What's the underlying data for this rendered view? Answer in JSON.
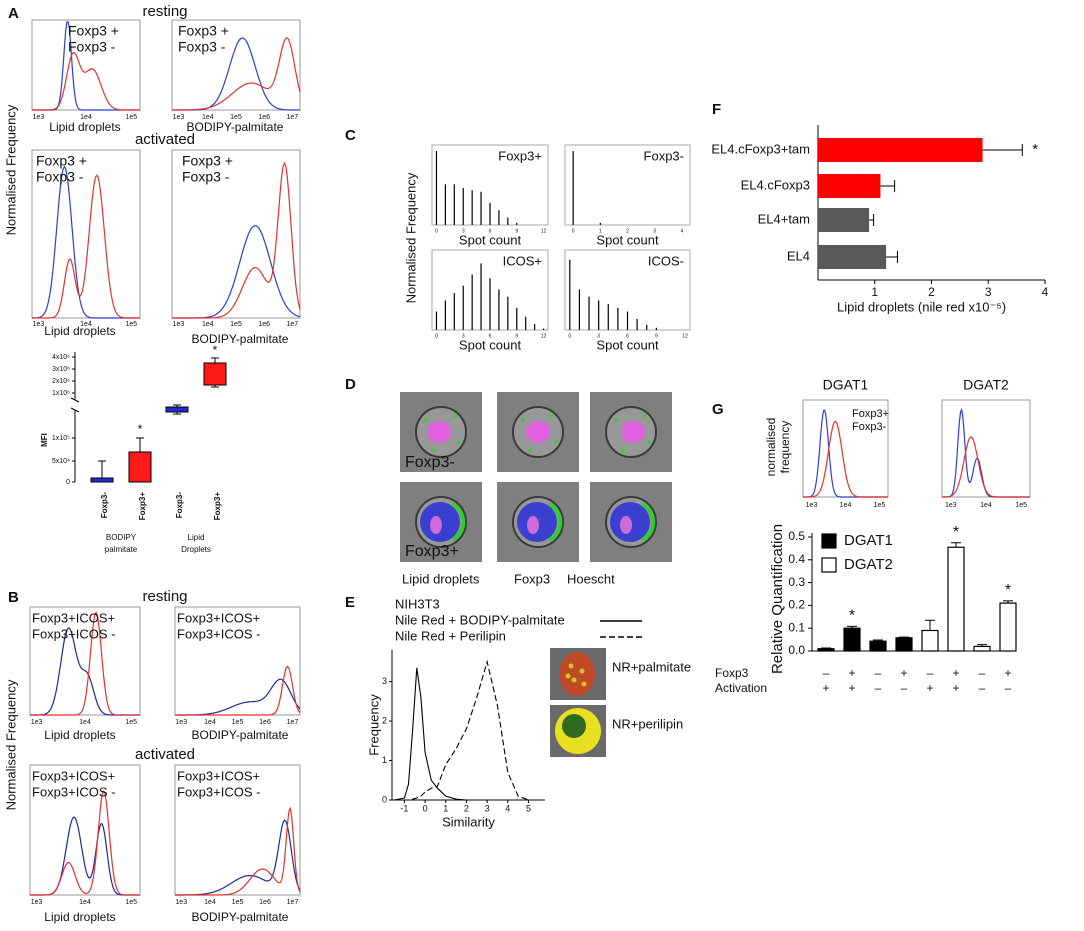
{
  "panel_labels": [
    "A",
    "B",
    "C",
    "D",
    "E",
    "F",
    "G"
  ],
  "a": {
    "resting": "resting",
    "activated": "activated",
    "y_label": "Normalised Frequency",
    "legend": [
      "Foxp3 +",
      "Foxp3 -"
    ],
    "x_labels": [
      "Lipid droplets",
      "BODIPY-palmitate"
    ],
    "ticks_narrow": [
      "1e3",
      "1e4",
      "1e5"
    ],
    "ticks_wide": [
      "1e3",
      "1e4",
      "1e5",
      "1e6",
      "1e7"
    ],
    "mfi": {
      "y_label": "MFI",
      "ticks": [
        "4x10⁶",
        "3x10⁶",
        "2x10⁶",
        "1x10⁶",
        "1x10⁵",
        "5x10⁴",
        "0"
      ],
      "categories": [
        "Foxp3-",
        "Foxp3+",
        "Foxp3-",
        "Foxp3+"
      ],
      "groups": [
        [
          "BODIPY",
          "palmitate"
        ],
        [
          "Lipid",
          "Droplets"
        ]
      ],
      "stars": [
        "*",
        "*"
      ]
    }
  },
  "b": {
    "resting": "resting",
    "activated": "activated",
    "y_label": "Normalised Frequency",
    "legend": [
      "Foxp3+ICOS+",
      "Foxp3+ICOS -"
    ],
    "x_labels": [
      "Lipid droplets",
      "BODIPY-palmitate"
    ]
  },
  "c": {
    "y_label": "Normalised Frequency"
  },
  "d": {
    "labels": [
      "Foxp3-",
      "Foxp3+"
    ],
    "legend": [
      "Lipid droplets",
      "Foxp3",
      "Hoescht"
    ]
  },
  "e": {
    "thumb_labels": [
      "NR+palmitate",
      "NR+perilipin"
    ]
  },
  "g": {
    "titles": [
      "DGAT1",
      "DGAT2"
    ],
    "y_label": [
      "normalised",
      "frequency"
    ],
    "legend": [
      "Foxp3+",
      "Foxp3-"
    ],
    "ticks": [
      "1e3",
      "1e4",
      "1e5"
    ]
  },
  "chart_data": [
    {
      "type": "spike",
      "label": "Foxp3+",
      "xlabel": "Spot count",
      "x": [
        0,
        1,
        2,
        3,
        4,
        5,
        6,
        7,
        8,
        9
      ],
      "values": [
        1.0,
        0.55,
        0.55,
        0.5,
        0.47,
        0.45,
        0.3,
        0.2,
        0.1,
        0.03
      ],
      "xlim": [
        -0.5,
        12.5
      ],
      "xticks": [
        0,
        3,
        6,
        9,
        12
      ],
      "ylim": [
        0,
        1
      ]
    },
    {
      "type": "spike",
      "label": "Foxp3-",
      "xlabel": "Spot count",
      "x": [
        0,
        1
      ],
      "values": [
        1.0,
        0.03
      ],
      "xlim": [
        -0.3,
        4.3
      ],
      "xticks": [
        0,
        1,
        2,
        3,
        4
      ],
      "ylim": [
        0,
        1
      ]
    },
    {
      "type": "spike",
      "label": "ICOS+",
      "xlabel": "Spot count",
      "x": [
        0,
        1,
        2,
        3,
        4,
        5,
        6,
        7,
        8,
        9,
        10,
        11,
        12
      ],
      "values": [
        0.25,
        0.4,
        0.5,
        0.6,
        0.75,
        0.9,
        0.7,
        0.55,
        0.45,
        0.3,
        0.18,
        0.08,
        0.02
      ],
      "xlim": [
        -0.5,
        12.5
      ],
      "xticks": [
        0,
        3,
        6,
        9,
        12
      ],
      "ylim": [
        0,
        1
      ]
    },
    {
      "type": "spike",
      "label": "ICOS-",
      "xlabel": "Spot count",
      "x": [
        0,
        1,
        2,
        3,
        4,
        5,
        6,
        7,
        8,
        9
      ],
      "values": [
        0.95,
        0.55,
        0.45,
        0.4,
        0.35,
        0.3,
        0.25,
        0.15,
        0.07,
        0.03
      ],
      "xlim": [
        -0.5,
        12.5
      ],
      "xticks": [
        0,
        3,
        6,
        9,
        12
      ],
      "ylim": [
        0,
        1
      ]
    },
    {
      "type": "line",
      "title": "NIH3T3",
      "xlabel": "Similarity",
      "ylabel": "Frequency",
      "x": [
        -1.5,
        -1,
        -0.8,
        -0.6,
        -0.4,
        -0.2,
        0,
        0.3,
        0.6,
        1,
        1.5,
        2,
        2.5,
        3,
        3.5,
        4,
        4.5,
        5,
        5.5
      ],
      "series": [
        {
          "name": "Nile Red + BODIPY-palmitate",
          "color": "#000000",
          "style": "solid",
          "values": [
            0,
            0.05,
            0.4,
            1.8,
            3.35,
            2.6,
            1.2,
            0.5,
            0.3,
            0.1,
            0.02,
            0,
            0,
            0,
            0,
            0,
            0,
            0,
            0
          ]
        },
        {
          "name": "Nile Red + Perilipin",
          "color": "#000000",
          "style": "dashed",
          "values": [
            0,
            0,
            0,
            0.02,
            0.05,
            0.1,
            0.2,
            0.3,
            0.35,
            0.9,
            1.3,
            1.8,
            2.6,
            3.5,
            2.4,
            0.7,
            0.1,
            0,
            0
          ]
        }
      ],
      "xlim": [
        -1.6,
        5.8
      ],
      "xticks": [
        -1,
        0,
        1,
        2,
        3,
        4,
        5
      ],
      "ylim": [
        0,
        3.8
      ],
      "yticks": [
        0,
        1,
        2,
        3
      ]
    },
    {
      "type": "barh",
      "xlabel": "Lipid droplets (nile red x10⁻⁵)",
      "categories": [
        "EL4.cFoxp3+tam",
        "EL4.cFoxp3",
        "EL4+tam",
        "EL4"
      ],
      "values": [
        2.9,
        1.1,
        0.9,
        1.2
      ],
      "errors": [
        0.7,
        0.25,
        0.08,
        0.2
      ],
      "colors": [
        "#ff0000",
        "#ff0000",
        "#595959",
        "#595959"
      ],
      "xlim": [
        0,
        4
      ],
      "xticks": [
        1,
        2,
        3,
        4
      ],
      "annotations": [
        {
          "index": 0,
          "text": "*"
        }
      ]
    },
    {
      "type": "bar",
      "ylabel": "Relative Quantification",
      "values": [
        0.01,
        0.1,
        0.043,
        0.058,
        0.09,
        0.455,
        0.02,
        0.21
      ],
      "errors": [
        0.003,
        0.008,
        0.005,
        0.003,
        0.045,
        0.02,
        0.008,
        0.01
      ],
      "colors": [
        "#000000",
        "#000000",
        "#000000",
        "#000000",
        "#ffffff",
        "#ffffff",
        "#ffffff",
        "#ffffff"
      ],
      "legend": [
        {
          "name": "DGAT1",
          "color": "#000000"
        },
        {
          "name": "DGAT2",
          "color": "#ffffff"
        }
      ],
      "rows": [
        {
          "name": "Foxp3",
          "signs": [
            "–",
            "+",
            "–",
            "+",
            "–",
            "+",
            "–",
            "+"
          ]
        },
        {
          "name": "Activation",
          "signs": [
            "+",
            "+",
            "–",
            "–",
            "+",
            "+",
            "–",
            "–"
          ]
        }
      ],
      "ylim": [
        0,
        0.5
      ],
      "yticks": [
        {
          "value": 0,
          "label": "0.0"
        },
        0.1,
        0.2,
        0.3,
        0.4,
        0.5
      ],
      "annotations": [
        {
          "index": 1,
          "text": "*"
        },
        {
          "index": 5,
          "text": "*"
        },
        {
          "index": 7,
          "text": "*"
        }
      ]
    }
  ]
}
